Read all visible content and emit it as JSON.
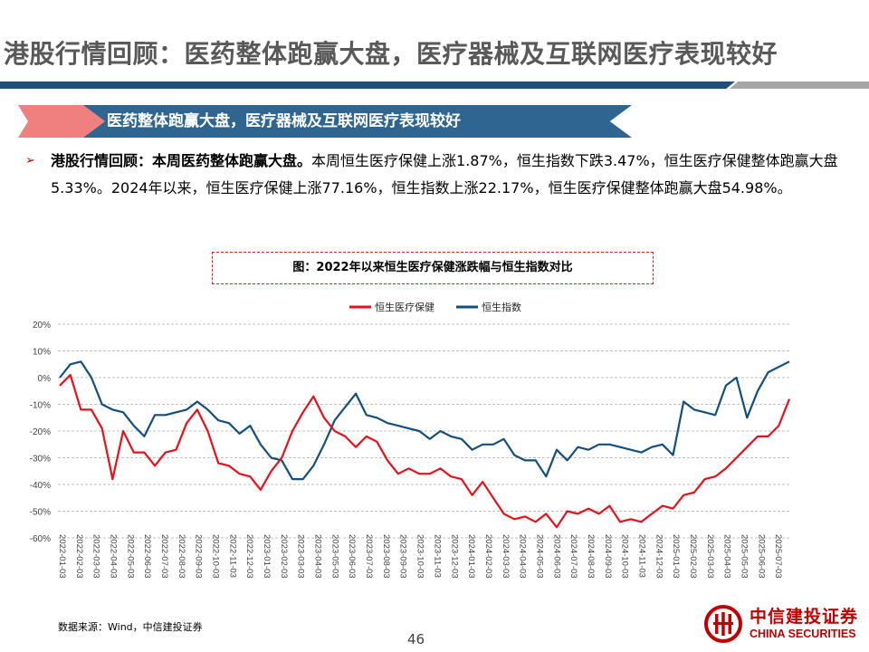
{
  "page": {
    "title": "港股行情回顾：医药整体跑赢大盘，医疗器械及互联网医疗表现较好",
    "banner": "医药整体跑赢大盘，医疗器械及互联网医疗表现较好",
    "bullet_marker": "➢",
    "summary_lead": "港股行情回顾：本周医药整体跑赢大盘。",
    "summary_rest": "本周恒生医疗保健上涨1.87%，恒生指数下跌3.47%，恒生医疗保健整体跑赢大盘5.33%。2024年以来，恒生医疗保健上涨77.16%，恒生指数上涨22.17%，恒生医疗保健整体跑赢大盘54.98%。",
    "figure_caption": "图：2022年以来恒生医疗保健涨跌幅与恒生指数对比",
    "source": "数据来源：Wind，中信建投证券",
    "page_number": "46",
    "logo_cn": "中信建投证券",
    "logo_en": "CHINA SECURITIES"
  },
  "colors": {
    "healthcare": "#E8101A",
    "hsi": "#134F7E",
    "brand": "#C00000",
    "title_blue": "#1F4E79"
  },
  "chart_data": {
    "type": "line",
    "title": "",
    "xlabel": "",
    "ylabel": "",
    "y_unit": "%",
    "ylim": [
      -60,
      20
    ],
    "y_ticks": [
      20,
      10,
      0,
      -10,
      -20,
      -30,
      -40,
      -50,
      -60
    ],
    "y_tick_labels": [
      "20%",
      "10%",
      "0%",
      "-10%",
      "-20%",
      "-30%",
      "-40%",
      "-50%",
      "-60%"
    ],
    "x_tick_labels": [
      "2022-01-03",
      "2022-02-03",
      "2022-03-03",
      "2022-04-03",
      "2022-05-03",
      "2022-06-03",
      "2022-07-03",
      "2022-08-03",
      "2022-09-03",
      "2022-10-03",
      "2022-11-03",
      "2022-12-03",
      "2023-01-03",
      "2023-02-03",
      "2023-03-03",
      "2023-04-03",
      "2023-05-03",
      "2023-06-03",
      "2023-07-03",
      "2023-08-03",
      "2023-09-03",
      "2023-10-03",
      "2023-11-03",
      "2023-12-03",
      "2024-01-03",
      "2024-02-03",
      "2024-03-03",
      "2024-04-03",
      "2024-05-03",
      "2024-06-03",
      "2024-07-03",
      "2024-08-03",
      "2024-09-03",
      "2024-10-03",
      "2024-11-03",
      "2024-12-03",
      "2025-01-03",
      "2025-02-03",
      "2025-03-03",
      "2025-04-03",
      "2025-05-03",
      "2025-06-03",
      "2025-07-03"
    ],
    "grid": true,
    "legend_position": "top-center",
    "series": [
      {
        "name": "恒生医疗保健",
        "values": [
          -3,
          1,
          -12,
          -12,
          -19,
          -38,
          -20,
          -28,
          -28,
          -33,
          -28,
          -27,
          -17,
          -12,
          -20,
          -32,
          -33,
          -36,
          -37,
          -42,
          -35,
          -30,
          -20,
          -13,
          -7,
          -15,
          -20,
          -22,
          -26,
          -22,
          -24,
          -31,
          -36,
          -34,
          -36,
          -36,
          -34,
          -37,
          -38,
          -44,
          -39,
          -45,
          -51,
          -53,
          -52,
          -54,
          -51,
          -56,
          -50,
          -51,
          -49,
          -51,
          -48,
          -54,
          -53,
          -54,
          -51,
          -48,
          -49,
          -44,
          -43,
          -38,
          -37,
          -34,
          -30,
          -26,
          -22,
          -22,
          -18,
          -8
        ],
        "label_values_note": "weekly sampled approximation"
      },
      {
        "name": "恒生指数",
        "values": [
          0,
          5,
          6,
          0,
          -10,
          -12,
          -13,
          -18,
          -22,
          -14,
          -14,
          -13,
          -12,
          -9,
          -12,
          -16,
          -17,
          -21,
          -18,
          -25,
          -30,
          -31,
          -38,
          -38,
          -33,
          -25,
          -16,
          -11,
          -6,
          -14,
          -15,
          -17,
          -18,
          -19,
          -20,
          -23,
          -20,
          -22,
          -23,
          -27,
          -25,
          -25,
          -23,
          -29,
          -31,
          -31,
          -37,
          -27,
          -31,
          -26,
          -27,
          -25,
          -25,
          -26,
          -27,
          -28,
          -26,
          -25,
          -29,
          -9,
          -12,
          -13,
          -14,
          -3,
          0,
          -15,
          -5,
          2,
          4,
          6
        ],
        "label_values_note": "weekly sampled approximation"
      }
    ]
  }
}
